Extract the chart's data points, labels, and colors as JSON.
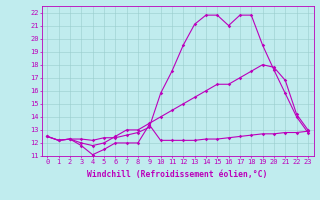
{
  "title": "",
  "xlabel": "Windchill (Refroidissement éolien,°C)",
  "xlim": [
    -0.5,
    23.5
  ],
  "ylim": [
    11,
    22.5
  ],
  "xticks": [
    0,
    1,
    2,
    3,
    4,
    5,
    6,
    7,
    8,
    9,
    10,
    11,
    12,
    13,
    14,
    15,
    16,
    17,
    18,
    19,
    20,
    21,
    22,
    23
  ],
  "yticks": [
    11,
    12,
    13,
    14,
    15,
    16,
    17,
    18,
    19,
    20,
    21,
    22
  ],
  "bg_color": "#c0ecee",
  "line_color": "#bb00bb",
  "grid_color": "#99cccc",
  "line1_y": [
    12.5,
    12.2,
    12.3,
    11.8,
    11.1,
    11.5,
    12.0,
    12.0,
    12.0,
    13.4,
    12.2,
    12.2,
    12.2,
    12.2,
    12.3,
    12.3,
    12.4,
    12.5,
    12.6,
    12.7,
    12.7,
    12.8,
    12.8,
    12.9
  ],
  "line2_y": [
    12.5,
    12.2,
    12.3,
    12.3,
    12.2,
    12.4,
    12.4,
    12.6,
    12.8,
    13.2,
    15.8,
    17.5,
    19.5,
    21.1,
    21.8,
    21.8,
    21.0,
    21.8,
    21.8,
    19.5,
    17.6,
    15.8,
    14.0,
    12.8
  ],
  "line3_y": [
    12.5,
    12.2,
    12.3,
    12.0,
    11.8,
    12.0,
    12.5,
    13.0,
    13.0,
    13.5,
    14.0,
    14.5,
    15.0,
    15.5,
    16.0,
    16.5,
    16.5,
    17.0,
    17.5,
    18.0,
    17.8,
    16.8,
    14.2,
    13.0
  ],
  "marker": "D",
  "markersize": 1.8,
  "linewidth": 0.8,
  "tick_fontsize": 5.0,
  "label_fontsize": 5.8
}
